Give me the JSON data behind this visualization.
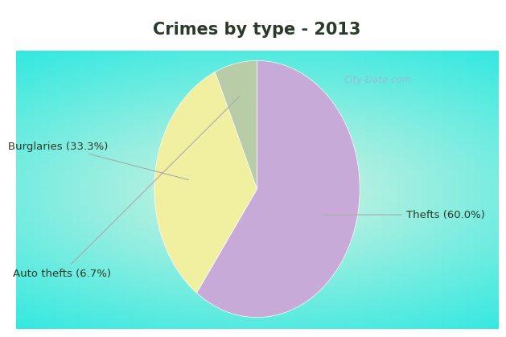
{
  "title": "Crimes by type - 2013",
  "slices": [
    {
      "label": "Thefts (60.0%)",
      "value": 60.0,
      "color": "#c8aad8"
    },
    {
      "label": "Burglaries (33.3%)",
      "value": 33.3,
      "color": "#f0f0a0"
    },
    {
      "label": "Auto thefts (6.7%)",
      "value": 6.7,
      "color": "#b8cca8"
    }
  ],
  "title_bg_color": "#00ffff",
  "chart_bg_color": "#c8ece4",
  "title_fontsize": 15,
  "label_fontsize": 9.5,
  "watermark": "City-Data.com",
  "startangle": 90,
  "title_color": "#2a3a2a"
}
